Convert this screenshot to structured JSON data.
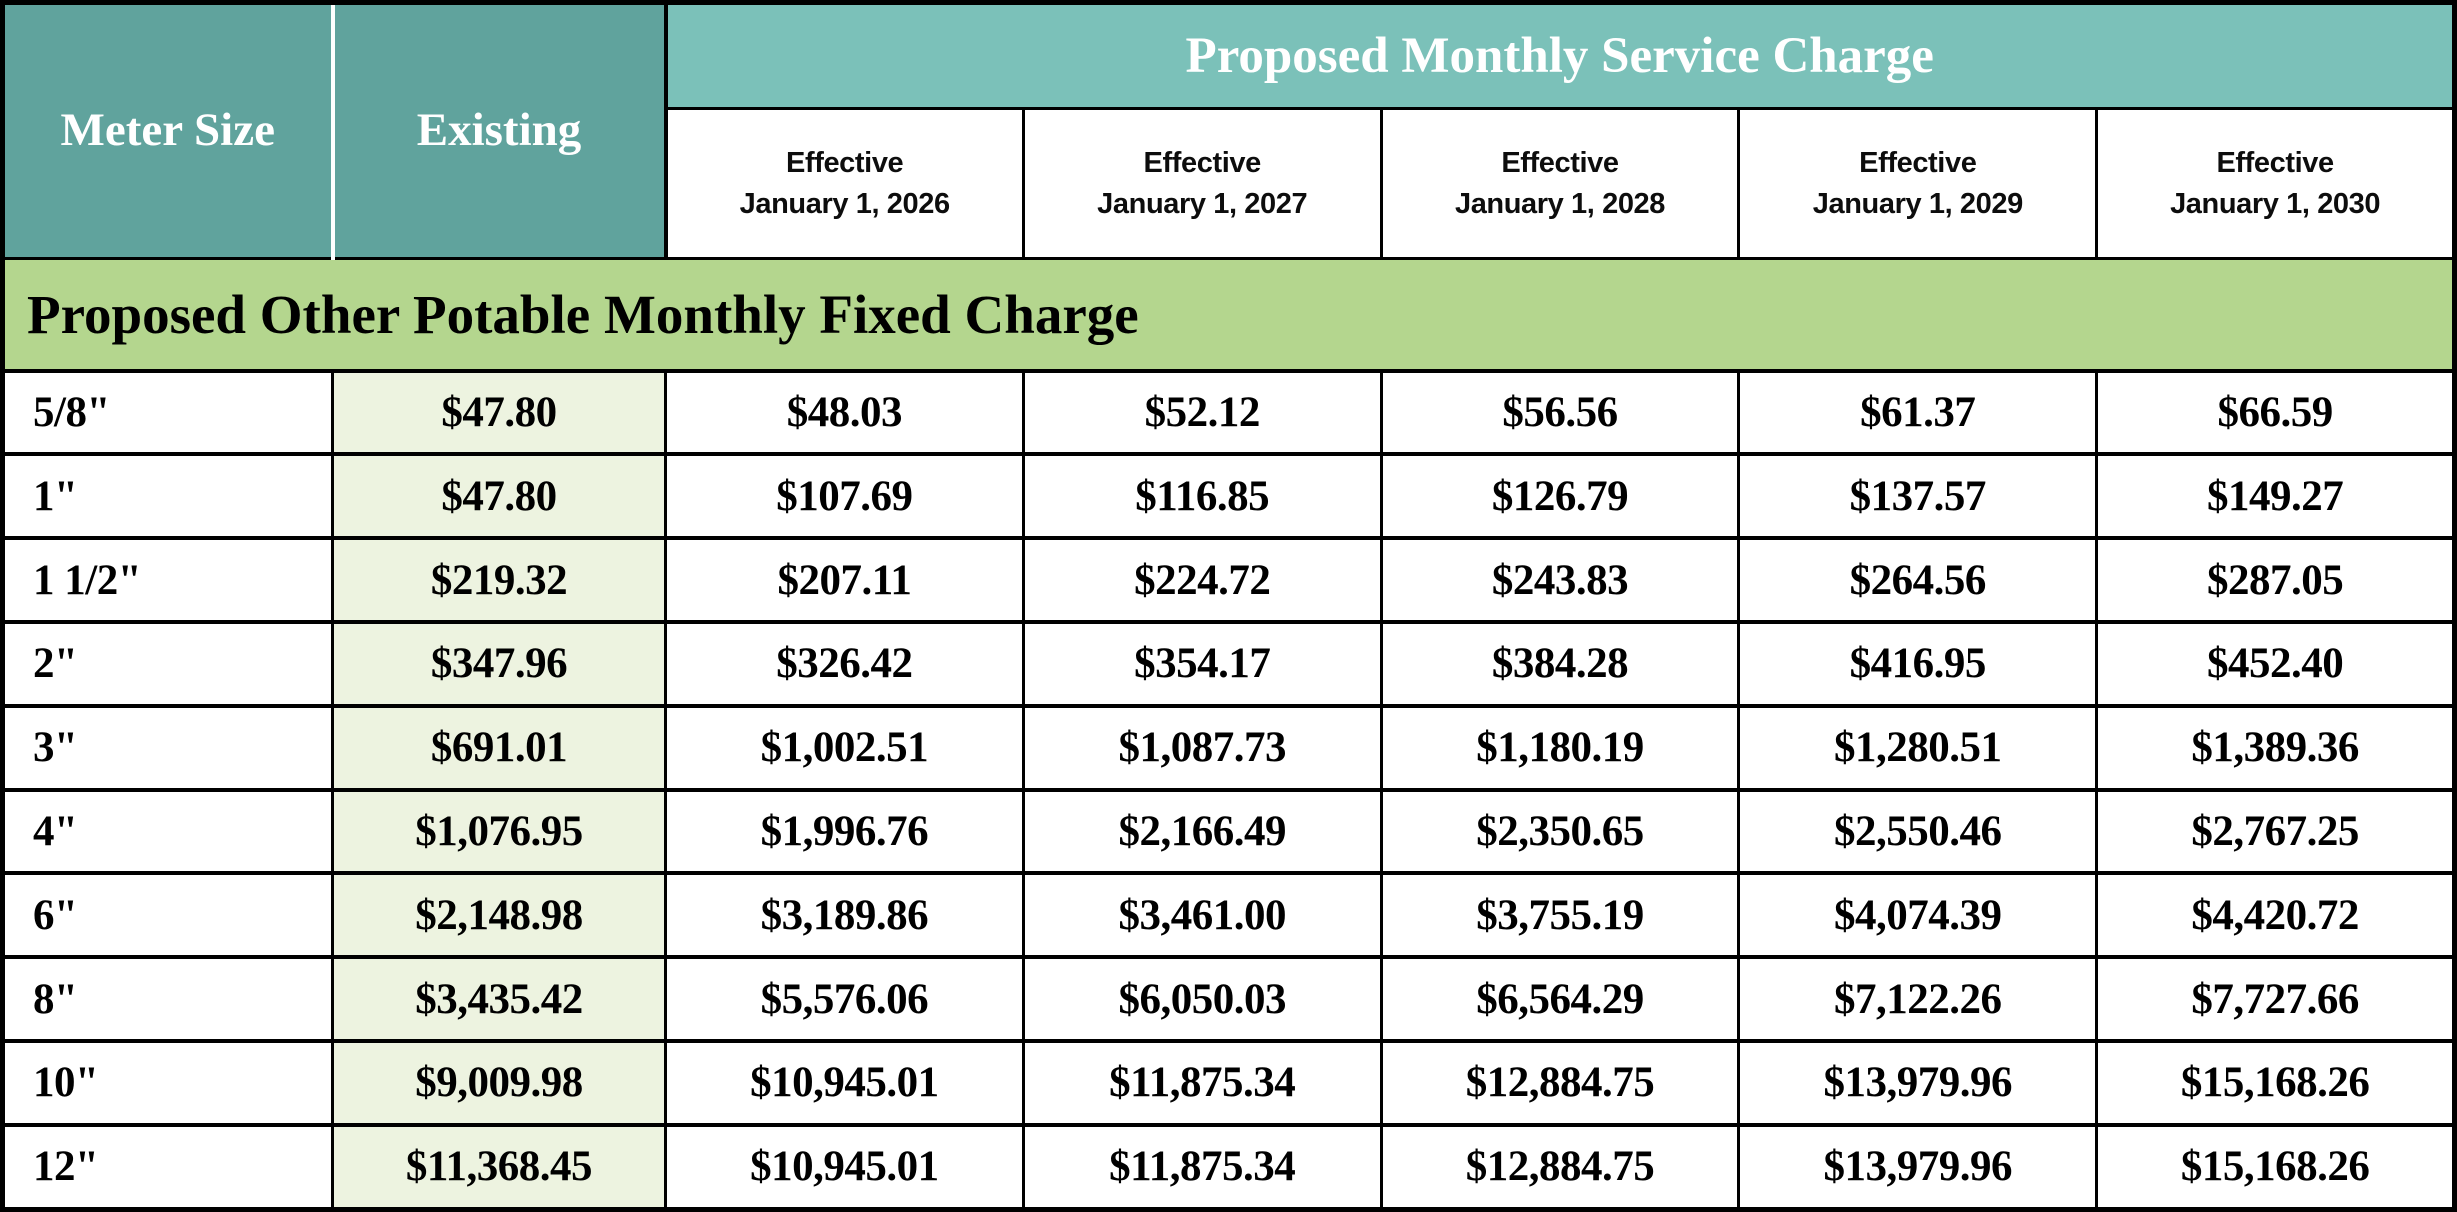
{
  "chart_data": {
    "type": "table",
    "title": "Proposed Monthly Service Charge",
    "section_title": "Proposed Other Potable Monthly Fixed Charge",
    "columns": [
      "Meter Size",
      "Existing",
      "Effective January 1, 2026",
      "Effective January 1, 2027",
      "Effective January 1, 2028",
      "Effective January 1, 2029",
      "Effective January 1, 2030"
    ],
    "rows": [
      [
        "5/8\"",
        "$47.80",
        "$48.03",
        "$52.12",
        "$56.56",
        "$61.37",
        "$66.59"
      ],
      [
        "1\"",
        "$47.80",
        "$107.69",
        "$116.85",
        "$126.79",
        "$137.57",
        "$149.27"
      ],
      [
        "1 1/2\"",
        "$219.32",
        "$207.11",
        "$224.72",
        "$243.83",
        "$264.56",
        "$287.05"
      ],
      [
        "2\"",
        "$347.96",
        "$326.42",
        "$354.17",
        "$384.28",
        "$416.95",
        "$452.40"
      ],
      [
        "3\"",
        "$691.01",
        "$1,002.51",
        "$1,087.73",
        "$1,180.19",
        "$1,280.51",
        "$1,389.36"
      ],
      [
        "4\"",
        "$1,076.95",
        "$1,996.76",
        "$2,166.49",
        "$2,350.65",
        "$2,550.46",
        "$2,767.25"
      ],
      [
        "6\"",
        "$2,148.98",
        "$3,189.86",
        "$3,461.00",
        "$3,755.19",
        "$4,074.39",
        "$4,420.72"
      ],
      [
        "8\"",
        "$3,435.42",
        "$5,576.06",
        "$6,050.03",
        "$6,564.29",
        "$7,122.26",
        "$7,727.66"
      ],
      [
        "10\"",
        "$9,009.98",
        "$10,945.01",
        "$11,875.34",
        "$12,884.75",
        "$13,979.96",
        "$15,168.26"
      ],
      [
        "12\"",
        "$11,368.45",
        "$10,945.01",
        "$11,875.34",
        "$12,884.75",
        "$13,979.96",
        "$15,168.26"
      ]
    ]
  },
  "header": {
    "meter_size": "Meter Size",
    "existing": "Existing",
    "proposed_title": "Proposed Monthly Service Charge",
    "effective": [
      {
        "line1": "Effective",
        "line2": "January 1, 2026"
      },
      {
        "line1": "Effective",
        "line2": "January 1, 2027"
      },
      {
        "line1": "Effective",
        "line2": "January 1, 2028"
      },
      {
        "line1": "Effective",
        "line2": "January 1, 2029"
      },
      {
        "line1": "Effective",
        "line2": "January 1, 2030"
      }
    ]
  },
  "section": {
    "title": "Proposed Other Potable Monthly Fixed Charge"
  },
  "colors": {
    "header_teal_dark": "#60A39D",
    "header_teal_light": "#7BC1B9",
    "band_green": "#B4D68E",
    "existing_column_green": "#EDF3E0",
    "border_black": "#000000",
    "header_text_white": "#FFFFFF",
    "body_text_black": "#000000"
  }
}
